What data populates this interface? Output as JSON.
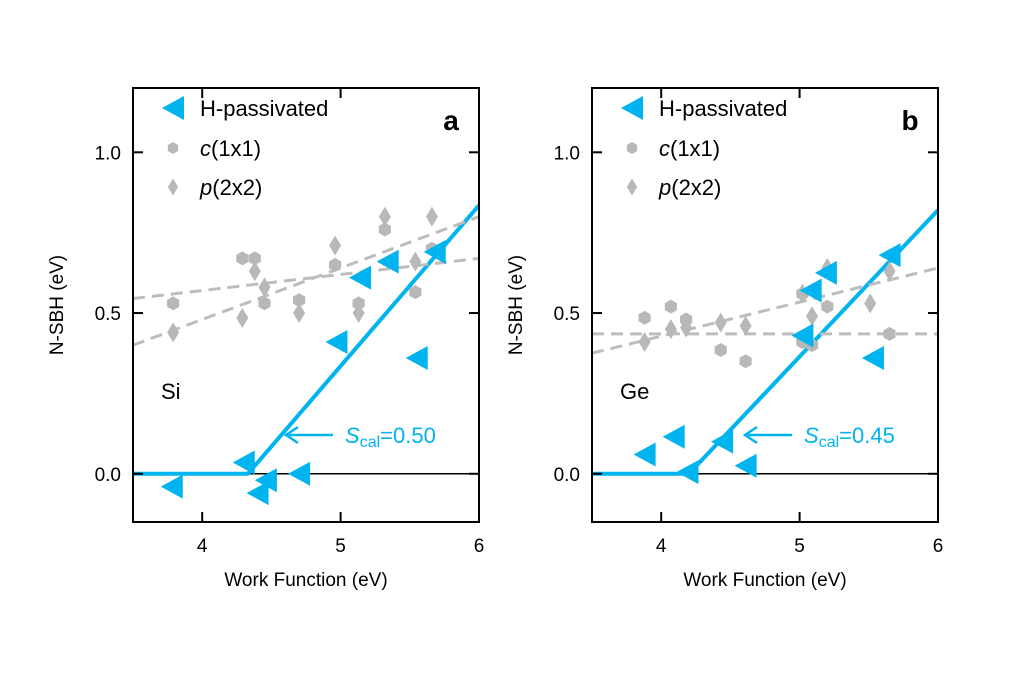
{
  "colors": {
    "h_passivated": "#00b4f0",
    "c1x1": "#b8b8b8",
    "p2x2": "#b8b8b8",
    "fit_gray": "#bdbdbd"
  },
  "chart_data": [
    {
      "type": "scatter",
      "panel_label": "a",
      "material": "Si",
      "xlabel": "Work Function (eV)",
      "ylabel": "N-SBH (eV)",
      "xlim": [
        3.5,
        6
      ],
      "ylim": [
        -0.15,
        1.2
      ],
      "xticks": [
        "4",
        "5",
        "6"
      ],
      "yticks": [
        "0.0",
        "0.5",
        "1.0"
      ],
      "legend": {
        "placement": "top-left",
        "entries": [
          {
            "prefix": "",
            "italic": "",
            "label": "H-passivated",
            "marker": "left-triangle"
          },
          {
            "prefix": "",
            "italic": "c",
            "label": "(1x1)",
            "marker": "hexagon"
          },
          {
            "prefix": "",
            "italic": "p",
            "label": "(2x2)",
            "marker": "diamond"
          }
        ]
      },
      "series": [
        {
          "name": "H-passivated",
          "marker": "left-triangle",
          "x": [
            3.78,
            4.3,
            4.46,
            4.4,
            4.7,
            4.97,
            5.14,
            5.34,
            5.55,
            5.68
          ],
          "y": [
            -0.04,
            0.035,
            -0.02,
            -0.06,
            0.0,
            0.41,
            0.61,
            0.66,
            0.36,
            0.69
          ]
        },
        {
          "name": "c(1x1)",
          "marker": "hexagon",
          "x": [
            3.79,
            4.29,
            4.38,
            4.45,
            4.7,
            4.96,
            5.13,
            5.32,
            5.54,
            5.66
          ],
          "y": [
            0.53,
            0.67,
            0.67,
            0.53,
            0.54,
            0.65,
            0.53,
            0.76,
            0.565,
            0.7
          ]
        },
        {
          "name": "p(2x2)",
          "marker": "diamond",
          "x": [
            3.79,
            4.29,
            4.38,
            4.45,
            4.7,
            4.96,
            5.13,
            5.32,
            5.54,
            5.66
          ],
          "y": [
            0.44,
            0.485,
            0.63,
            0.58,
            0.5,
            0.71,
            0.5,
            0.8,
            0.66,
            0.8
          ]
        }
      ],
      "fit_lines": [
        {
          "style": "solid-blue",
          "x": [
            3.5,
            4.33,
            6.0
          ],
          "y": [
            0.0,
            0.0,
            0.835
          ]
        },
        {
          "style": "dashed-gray",
          "x": [
            3.5,
            6.0
          ],
          "y": [
            0.545,
            0.67
          ]
        },
        {
          "style": "dashed-gray",
          "x": [
            3.5,
            6.0
          ],
          "y": [
            0.4,
            0.8
          ]
        }
      ],
      "zero_line": 0.0,
      "annotation": {
        "symbol": "S",
        "subscript": "cal",
        "value": "=0.50"
      }
    },
    {
      "type": "scatter",
      "panel_label": "b",
      "material": "Ge",
      "xlabel": "Work Function (eV)",
      "ylabel": "N-SBH (eV)",
      "xlim": [
        3.5,
        6
      ],
      "ylim": [
        -0.15,
        1.2
      ],
      "xticks": [
        "4",
        "5",
        "6"
      ],
      "yticks": [
        "0.0",
        "0.5",
        "1.0"
      ],
      "legend": {
        "placement": "top-left",
        "entries": [
          {
            "prefix": "",
            "italic": "",
            "label": "H-passivated",
            "marker": "left-triangle"
          },
          {
            "prefix": "",
            "italic": "c",
            "label": "(1x1)",
            "marker": "hexagon"
          },
          {
            "prefix": "",
            "italic": "p",
            "label": "(2x2)",
            "marker": "diamond"
          }
        ]
      },
      "series": [
        {
          "name": "H-passivated",
          "marker": "left-triangle",
          "x": [
            3.88,
            4.09,
            4.19,
            4.44,
            4.61,
            5.02,
            5.08,
            5.19,
            5.53,
            5.65
          ],
          "y": [
            0.06,
            0.115,
            0.005,
            0.1,
            0.025,
            0.43,
            0.57,
            0.625,
            0.36,
            0.68
          ]
        },
        {
          "name": "c(1x1)",
          "marker": "hexagon",
          "x": [
            3.88,
            4.07,
            4.18,
            4.43,
            4.61,
            5.02,
            5.09,
            5.2,
            5.65,
            5.02
          ],
          "y": [
            0.485,
            0.52,
            0.48,
            0.385,
            0.35,
            0.41,
            0.4,
            0.52,
            0.435,
            0.56
          ]
        },
        {
          "name": "p(2x2)",
          "marker": "diamond",
          "x": [
            3.88,
            4.07,
            4.18,
            4.43,
            4.61,
            5.02,
            5.09,
            5.2,
            5.51,
            5.65
          ],
          "y": [
            0.41,
            0.45,
            0.455,
            0.47,
            0.46,
            0.56,
            0.49,
            0.64,
            0.53,
            0.63
          ]
        }
      ],
      "fit_lines": [
        {
          "style": "solid-blue",
          "x": [
            3.5,
            4.2,
            6.0
          ],
          "y": [
            0.0,
            0.0,
            0.82
          ]
        },
        {
          "style": "dashed-gray",
          "x": [
            3.5,
            6.0
          ],
          "y": [
            0.435,
            0.435
          ]
        },
        {
          "style": "dashed-gray",
          "x": [
            3.5,
            6.0
          ],
          "y": [
            0.375,
            0.64
          ]
        }
      ],
      "zero_line": 0.0,
      "annotation": {
        "symbol": "S",
        "subscript": "cal",
        "value": "=0.45"
      }
    }
  ]
}
